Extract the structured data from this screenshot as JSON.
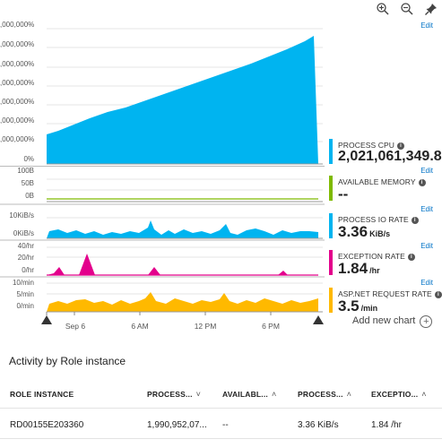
{
  "toolbar": {
    "zoom_in_icon": "zoom-in-icon",
    "zoom_out_icon": "zoom-out-icon",
    "pin_icon": "pin-icon"
  },
  "charts": {
    "cpu": {
      "ticks": [
        ",000,000%",
        ",000,000%",
        ",000,000%",
        ",000,000%",
        ",000,000%",
        ",000,000%",
        ",000,000%",
        "0%"
      ]
    },
    "memory": {
      "ticks": [
        "100B",
        "50B",
        "0B"
      ]
    },
    "io": {
      "ticks": [
        "10KiB/s",
        "0KiB/s"
      ]
    },
    "exception": {
      "ticks": [
        "40/hr",
        "20/hr",
        "0/hr"
      ]
    },
    "request": {
      "ticks": [
        "10/min",
        "5/min",
        "0/min"
      ]
    },
    "time_axis": [
      "Sep 6",
      "6 AM",
      "12 PM",
      "6 PM"
    ]
  },
  "kpis": [
    {
      "edit": "Edit",
      "title": "PROCESS CPU",
      "value": "2,021,061,349.8",
      "unit": "",
      "color": "#00b4f0"
    },
    {
      "edit": "Edit",
      "title": "AVAILABLE MEMORY",
      "value": "--",
      "unit": "",
      "color": "#7fba00"
    },
    {
      "edit": "Edit",
      "title": "PROCESS IO RATE",
      "value": "3.36",
      "unit": "KiB/s",
      "color": "#00b4f0"
    },
    {
      "edit": "Edit",
      "title": "EXCEPTION RATE",
      "value": "1.84",
      "unit": "/hr",
      "color": "#e3008c"
    },
    {
      "edit": "Edit",
      "title": "ASP.NET REQUEST RATE",
      "value": "3.5",
      "unit": "/min",
      "color": "#ffb900"
    }
  ],
  "add_chart": "Add new chart",
  "section_title": "Activity by Role instance",
  "table": {
    "columns": [
      {
        "label": "ROLE INSTANCE",
        "sort": ""
      },
      {
        "label": "PROCESS...",
        "sort": "˅"
      },
      {
        "label": "AVAILABL...",
        "sort": "˄"
      },
      {
        "label": "PROCESS...",
        "sort": "˄"
      },
      {
        "label": "EXCEPTIO...",
        "sort": "˄"
      }
    ],
    "rows": [
      [
        "RD00155E203360",
        "1,990,952,07...",
        "--",
        "3.36 KiB/s",
        "1.84 /hr"
      ]
    ]
  }
}
